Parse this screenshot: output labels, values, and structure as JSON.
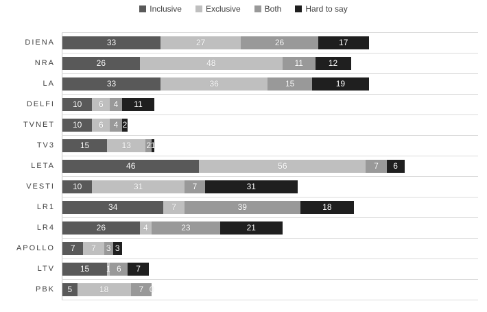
{
  "chart_data": {
    "type": "bar",
    "orientation": "horizontal",
    "stacked": true,
    "title": "",
    "xlabel": "",
    "ylabel": "",
    "xlim": [
      0,
      140
    ],
    "grid": "category-separator-lines",
    "legend_position": "top-center",
    "data_label_color": "#ffffff",
    "gridline_color": "#d9d9d9",
    "categories": [
      "DIENA",
      "NRA",
      "LA",
      "DELFI",
      "TVNET",
      "TV3",
      "LETA",
      "VESTI",
      "LR1",
      "LR4",
      "APOLLO",
      "LTV",
      "PBK"
    ],
    "series": [
      {
        "name": "Inclusive",
        "color": "#595959",
        "values": [
          33,
          26,
          33,
          10,
          10,
          15,
          46,
          10,
          34,
          26,
          7,
          15,
          5
        ]
      },
      {
        "name": "Exclusive",
        "color": "#bfbfbf",
        "values": [
          27,
          48,
          36,
          6,
          6,
          13,
          56,
          31,
          7,
          4,
          7,
          1,
          18
        ]
      },
      {
        "name": "Both",
        "color": "#999999",
        "values": [
          26,
          11,
          15,
          4,
          4,
          2,
          7,
          7,
          39,
          23,
          3,
          6,
          7
        ]
      },
      {
        "name": "Hard to say",
        "color": "#1f1f1f",
        "values": [
          17,
          12,
          19,
          11,
          2,
          1,
          6,
          31,
          18,
          21,
          3,
          7,
          0
        ]
      }
    ]
  }
}
